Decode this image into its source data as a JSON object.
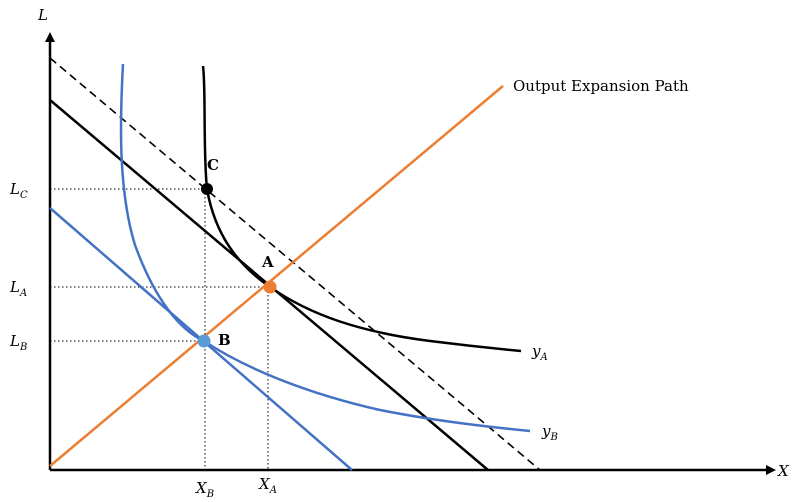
{
  "axes": {
    "y_label": "L",
    "x_label": "X"
  },
  "ticks": {
    "LC": {
      "main": "L",
      "sub": "C"
    },
    "LA": {
      "main": "L",
      "sub": "A"
    },
    "LB": {
      "main": "L",
      "sub": "B"
    },
    "XB": {
      "main": "X",
      "sub": "B"
    },
    "XA": {
      "main": "X",
      "sub": "A"
    }
  },
  "curves": {
    "yA": {
      "main": "y",
      "sub": "A"
    },
    "yB": {
      "main": "y",
      "sub": "B"
    }
  },
  "expansion_path_label": "Output Expansion Path",
  "points": {
    "A": "A",
    "B": "B",
    "C": "C"
  },
  "colors": {
    "expansion_path": "#ed7d31",
    "isoquant_B": "#4472c4",
    "isocost_B": "#4472c4",
    "isoquant_A": "#000000",
    "isocost_A": "#000000",
    "point_A": "#ed7d31",
    "point_B": "#5b9bd5",
    "point_C": "#000000"
  }
}
